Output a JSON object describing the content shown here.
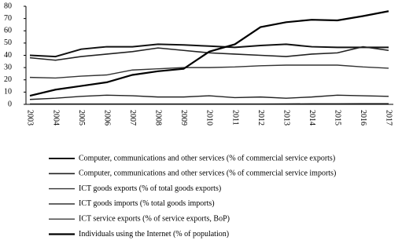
{
  "chart_data": {
    "type": "line",
    "categories": [
      "2003",
      "2004",
      "2005",
      "2006",
      "2007",
      "2008",
      "2009",
      "2010",
      "2011",
      "2012",
      "2013",
      "2014",
      "2015",
      "2016",
      "2017"
    ],
    "series": [
      {
        "name": "Computer, communications and other services (% of commercial service exports)",
        "color": "#111111",
        "values": [
          40,
          39,
          45,
          47,
          47,
          49,
          48.5,
          47.5,
          46.5,
          48,
          49,
          47,
          46.5,
          46.5,
          46.5
        ]
      },
      {
        "name": "Computer, communications and other services (% of commercial service imports)",
        "color": "#222222",
        "values": [
          38,
          36,
          39,
          41,
          43,
          46,
          44,
          42,
          41,
          40,
          39,
          41,
          42,
          47,
          44
        ]
      },
      {
        "name": "ICT goods exports (% of total goods exports)",
        "color": "#333333",
        "values": [
          22,
          21.5,
          23,
          24,
          28,
          29,
          30,
          30,
          30.5,
          31.5,
          32,
          32,
          32,
          30.5,
          29.5
        ]
      },
      {
        "name": "ICT goods imports (% total goods imports)",
        "color": "#222222",
        "values": [
          4,
          5,
          6.5,
          7.5,
          7,
          6,
          6,
          7,
          5.5,
          6,
          5,
          6,
          7.5,
          7,
          6.5
        ]
      },
      {
        "name": "ICT service exports (% of service exports, BoP)",
        "color": "#111111",
        "values": [
          0.3,
          0.3,
          0.3,
          0.3,
          0.3,
          0.3,
          0.3,
          0.3,
          0.3,
          0.3,
          0.4,
          0.5,
          0.5,
          0.6,
          0.6
        ]
      },
      {
        "name": "Individuals using the Internet (% of population)",
        "color": "#000000",
        "values": [
          7,
          12,
          15,
          18,
          24,
          27,
          29,
          43,
          49,
          63,
          67,
          69,
          68.5,
          72,
          76
        ]
      }
    ],
    "ylim": [
      0,
      80
    ],
    "yticks": [
      0,
      10,
      20,
      30,
      40,
      50,
      60,
      70,
      80
    ]
  }
}
